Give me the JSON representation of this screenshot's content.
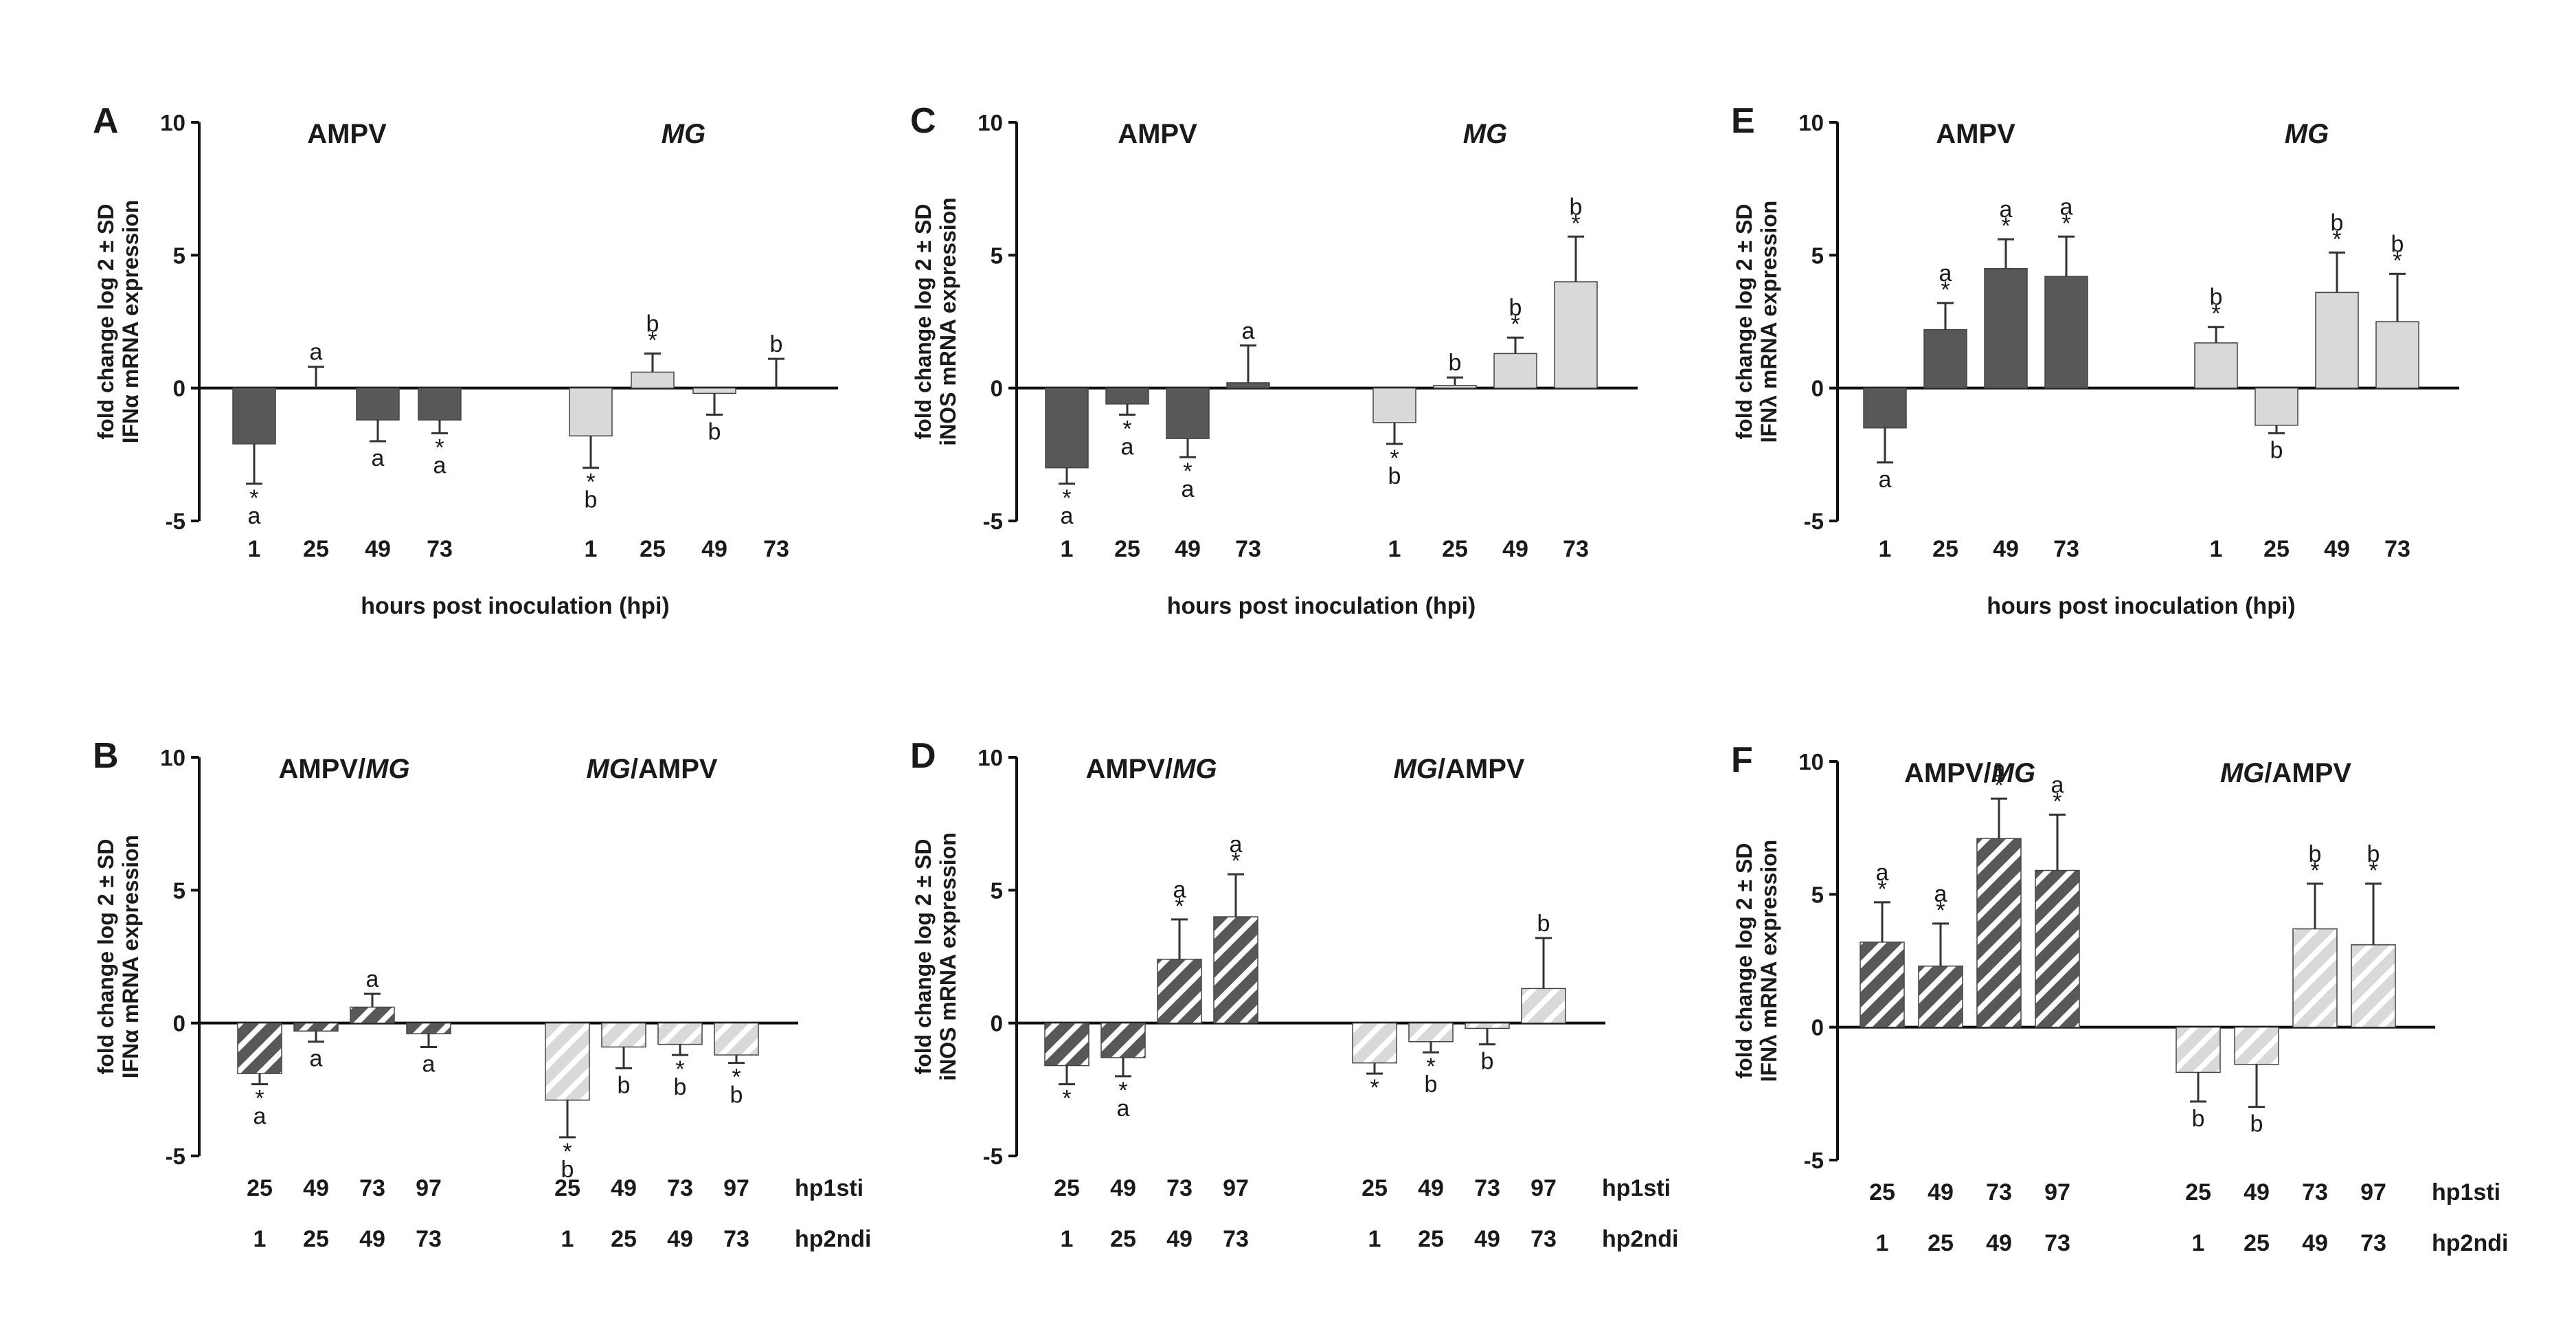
{
  "colors": {
    "AMPV": "#585858",
    "MG": "#d9d9d9",
    "AMPV_hatch_bg": "#585858",
    "MG_hatch_bg": "#d9d9d9",
    "hatch_stripe": "#ffffff"
  },
  "chart_data": [
    {
      "id": "A",
      "type": "bar",
      "panel_label": "A",
      "ylabel_line1": "fold change log 2 ± SD",
      "ylabel_line2": "IFNα mRNA expression",
      "ylim": [
        -5,
        10
      ],
      "yticks": [
        "10",
        "5",
        "0",
        "-5"
      ],
      "groups": [
        {
          "name": "AMPV",
          "italic": false,
          "bars": [
            {
              "category": "1",
              "value": -2.1,
              "sd": 1.5,
              "stars": "*",
              "letter": "a",
              "fill": "solid_dark"
            },
            {
              "category": "25",
              "value": 0,
              "sd": 0.8,
              "stars": "",
              "letter": "a",
              "fill": "solid_dark"
            },
            {
              "category": "49",
              "value": -1.2,
              "sd": 0.8,
              "stars": "",
              "letter": "a",
              "fill": "solid_dark"
            },
            {
              "category": "73",
              "value": -1.2,
              "sd": 0.5,
              "stars": "*",
              "letter": "a",
              "fill": "solid_dark"
            }
          ]
        },
        {
          "name": "MG",
          "italic": true,
          "bars": [
            {
              "category": "1",
              "value": -1.8,
              "sd": 1.2,
              "stars": "*",
              "letter": "b",
              "fill": "solid_light"
            },
            {
              "category": "25",
              "value": 0.6,
              "sd": 0.7,
              "stars": "*",
              "letter": "b",
              "fill": "solid_light"
            },
            {
              "category": "49",
              "value": -0.2,
              "sd": 0.8,
              "stars": "",
              "letter": "b",
              "fill": "solid_light"
            },
            {
              "category": "73",
              "value": 0,
              "sd": 1.1,
              "stars": "",
              "letter": "b",
              "fill": "solid_light"
            }
          ]
        }
      ],
      "xlabel": "hours post inoculation (hpi)"
    },
    {
      "id": "C",
      "type": "bar",
      "panel_label": "C",
      "ylabel_line1": "fold change log 2 ± SD",
      "ylabel_line2": "iNOS mRNA expression",
      "ylim": [
        -5,
        10
      ],
      "yticks": [
        "10",
        "5",
        "0",
        "-5"
      ],
      "groups": [
        {
          "name": "AMPV",
          "italic": false,
          "bars": [
            {
              "category": "1",
              "value": -3.0,
              "sd": 0.6,
              "stars": "*",
              "letter": "a",
              "fill": "solid_dark"
            },
            {
              "category": "25",
              "value": -0.6,
              "sd": 0.4,
              "stars": "*",
              "letter": "a",
              "fill": "solid_dark"
            },
            {
              "category": "49",
              "value": -1.9,
              "sd": 0.7,
              "stars": "*",
              "letter": "a",
              "fill": "solid_dark"
            },
            {
              "category": "73",
              "value": 0.2,
              "sd": 1.4,
              "stars": "",
              "letter": "a",
              "fill": "solid_dark"
            }
          ]
        },
        {
          "name": "MG",
          "italic": true,
          "bars": [
            {
              "category": "1",
              "value": -1.3,
              "sd": 0.8,
              "stars": "*",
              "letter": "b",
              "fill": "solid_light"
            },
            {
              "category": "25",
              "value": 0.1,
              "sd": 0.3,
              "stars": "",
              "letter": "b",
              "fill": "solid_light"
            },
            {
              "category": "49",
              "value": 1.3,
              "sd": 0.6,
              "stars": "*",
              "letter": "b",
              "fill": "solid_light"
            },
            {
              "category": "73",
              "value": 4.0,
              "sd": 1.7,
              "stars": "*",
              "letter": "b",
              "fill": "solid_light"
            }
          ]
        }
      ],
      "xlabel": "hours post inoculation (hpi)"
    },
    {
      "id": "E",
      "type": "bar",
      "panel_label": "E",
      "ylabel_line1": "fold change log 2 ± SD",
      "ylabel_line2": "IFNλ mRNA expression",
      "ylim": [
        -5,
        10
      ],
      "yticks": [
        "10",
        "5",
        "0",
        "-5"
      ],
      "groups": [
        {
          "name": "AMPV",
          "italic": false,
          "bars": [
            {
              "category": "1",
              "value": -1.5,
              "sd": 1.3,
              "stars": "",
              "letter": "a",
              "fill": "solid_dark"
            },
            {
              "category": "25",
              "value": 2.2,
              "sd": 1.0,
              "stars": "*",
              "letter": "a",
              "fill": "solid_dark"
            },
            {
              "category": "49",
              "value": 4.5,
              "sd": 1.1,
              "stars": "*",
              "letter": "a",
              "fill": "solid_dark"
            },
            {
              "category": "73",
              "value": 4.2,
              "sd": 1.5,
              "stars": "*",
              "letter": "a",
              "fill": "solid_dark"
            }
          ]
        },
        {
          "name": "MG",
          "italic": true,
          "bars": [
            {
              "category": "1",
              "value": 1.7,
              "sd": 0.6,
              "stars": "*",
              "letter": "b",
              "fill": "solid_light"
            },
            {
              "category": "25",
              "value": -1.4,
              "sd": 0.3,
              "stars": "",
              "letter": "b",
              "fill": "solid_light"
            },
            {
              "category": "49",
              "value": 3.6,
              "sd": 1.5,
              "stars": "*",
              "letter": "b",
              "fill": "solid_light"
            },
            {
              "category": "73",
              "value": 2.5,
              "sd": 1.8,
              "stars": "*",
              "letter": "b",
              "fill": "solid_light"
            }
          ]
        }
      ],
      "xlabel": "hours post inoculation (hpi)"
    },
    {
      "id": "B",
      "type": "bar",
      "panel_label": "B",
      "ylabel_line1": "fold change log 2 ± SD",
      "ylabel_line2": "IFNα mRNA expression",
      "ylim": [
        -5,
        10
      ],
      "yticks": [
        "10",
        "5",
        "0",
        "-5"
      ],
      "groups": [
        {
          "name": "AMPV/MG",
          "name_parts": [
            [
              "AMPV/",
              false
            ],
            [
              "MG",
              true
            ]
          ],
          "bars": [
            {
              "category": "25",
              "category2": "1",
              "value": -1.9,
              "sd": 0.4,
              "stars": "*",
              "letter": "a",
              "fill": "hatch_dark"
            },
            {
              "category": "49",
              "category2": "25",
              "value": -0.3,
              "sd": 0.4,
              "stars": "",
              "letter": "a",
              "fill": "hatch_dark"
            },
            {
              "category": "73",
              "category2": "49",
              "value": 0.6,
              "sd": 0.5,
              "stars": "",
              "letter": "a",
              "fill": "hatch_dark"
            },
            {
              "category": "97",
              "category2": "73",
              "value": -0.4,
              "sd": 0.5,
              "stars": "",
              "letter": "a",
              "fill": "hatch_dark"
            }
          ]
        },
        {
          "name": "MG/AMPV",
          "name_parts": [
            [
              "MG",
              true
            ],
            [
              "/AMPV",
              false
            ]
          ],
          "bars": [
            {
              "category": "25",
              "category2": "1",
              "value": -2.9,
              "sd": 1.4,
              "stars": "*",
              "letter": "b",
              "fill": "hatch_light"
            },
            {
              "category": "49",
              "category2": "25",
              "value": -0.9,
              "sd": 0.8,
              "stars": "",
              "letter": "b",
              "fill": "hatch_light"
            },
            {
              "category": "73",
              "category2": "49",
              "value": -0.8,
              "sd": 0.4,
              "stars": "*",
              "letter": "b",
              "fill": "hatch_light"
            },
            {
              "category": "97",
              "category2": "73",
              "value": -1.2,
              "sd": 0.3,
              "stars": "*",
              "letter": "b",
              "fill": "hatch_light"
            }
          ]
        }
      ],
      "row1_label": "hp1sti",
      "row2_label": "hp2ndi"
    },
    {
      "id": "D",
      "type": "bar",
      "panel_label": "D",
      "ylabel_line1": "fold change log 2 ± SD",
      "ylabel_line2": "iNOS mRNA expression",
      "ylim": [
        -5,
        10
      ],
      "yticks": [
        "10",
        "5",
        "0",
        "-5"
      ],
      "groups": [
        {
          "name": "AMPV/MG",
          "name_parts": [
            [
              "AMPV/",
              false
            ],
            [
              "MG",
              true
            ]
          ],
          "bars": [
            {
              "category": "25",
              "category2": "1",
              "value": -1.6,
              "sd": 0.7,
              "stars": "*",
              "letter": "",
              "fill": "hatch_dark"
            },
            {
              "category": "49",
              "category2": "25",
              "value": -1.3,
              "sd": 0.7,
              "stars": "*",
              "letter": "a",
              "fill": "hatch_dark"
            },
            {
              "category": "73",
              "category2": "49",
              "value": 2.4,
              "sd": 1.5,
              "stars": "*",
              "letter": "a",
              "fill": "hatch_dark"
            },
            {
              "category": "97",
              "category2": "73",
              "value": 4.0,
              "sd": 1.6,
              "stars": "*",
              "letter": "a",
              "fill": "hatch_dark"
            }
          ]
        },
        {
          "name": "MG/AMPV",
          "name_parts": [
            [
              "MG",
              true
            ],
            [
              "/AMPV",
              false
            ]
          ],
          "bars": [
            {
              "category": "25",
              "category2": "1",
              "value": -1.5,
              "sd": 0.4,
              "stars": "*",
              "letter": "",
              "fill": "hatch_light"
            },
            {
              "category": "49",
              "category2": "25",
              "value": -0.7,
              "sd": 0.4,
              "stars": "*",
              "letter": "b",
              "fill": "hatch_light"
            },
            {
              "category": "73",
              "category2": "49",
              "value": -0.2,
              "sd": 0.6,
              "stars": "",
              "letter": "b",
              "fill": "hatch_light"
            },
            {
              "category": "97",
              "category2": "73",
              "value": 1.3,
              "sd": 1.9,
              "stars": "",
              "letter": "b",
              "fill": "hatch_light"
            }
          ]
        }
      ],
      "row1_label": "hp1sti",
      "row2_label": "hp2ndi"
    },
    {
      "id": "F",
      "type": "bar",
      "panel_label": "F",
      "ylabel_line1": "fold change log 2 ± SD",
      "ylabel_line2": "IFNλ mRNA expression",
      "ylim": [
        -5,
        10
      ],
      "yticks": [
        "10",
        "5",
        "0",
        "-5"
      ],
      "groups": [
        {
          "name": "AMPV/MG",
          "name_parts": [
            [
              "AMPV/",
              false
            ],
            [
              "MG",
              true
            ]
          ],
          "bars": [
            {
              "category": "25",
              "category2": "1",
              "value": 3.2,
              "sd": 1.5,
              "stars": "*",
              "letter": "a",
              "fill": "hatch_dark"
            },
            {
              "category": "49",
              "category2": "25",
              "value": 2.3,
              "sd": 1.6,
              "stars": "*",
              "letter": "a",
              "fill": "hatch_dark"
            },
            {
              "category": "73",
              "category2": "49",
              "value": 7.1,
              "sd": 1.5,
              "stars": "*",
              "letter": "a",
              "fill": "hatch_dark"
            },
            {
              "category": "97",
              "category2": "73",
              "value": 5.9,
              "sd": 2.1,
              "stars": "*",
              "letter": "a",
              "fill": "hatch_dark"
            }
          ]
        },
        {
          "name": "MG/AMPV",
          "name_parts": [
            [
              "MG",
              true
            ],
            [
              "/AMPV",
              false
            ]
          ],
          "bars": [
            {
              "category": "25",
              "category2": "1",
              "value": -1.7,
              "sd": 1.1,
              "stars": "",
              "letter": "b",
              "fill": "hatch_light"
            },
            {
              "category": "49",
              "category2": "25",
              "value": -1.4,
              "sd": 1.6,
              "stars": "",
              "letter": "b",
              "fill": "hatch_light"
            },
            {
              "category": "73",
              "category2": "49",
              "value": 3.7,
              "sd": 1.7,
              "stars": "*",
              "letter": "b",
              "fill": "hatch_light"
            },
            {
              "category": "97",
              "category2": "73",
              "value": 3.1,
              "sd": 2.3,
              "stars": "*",
              "letter": "b",
              "fill": "hatch_light"
            }
          ]
        }
      ],
      "row1_label": "hp1sti",
      "row2_label": "hp2ndi"
    }
  ]
}
